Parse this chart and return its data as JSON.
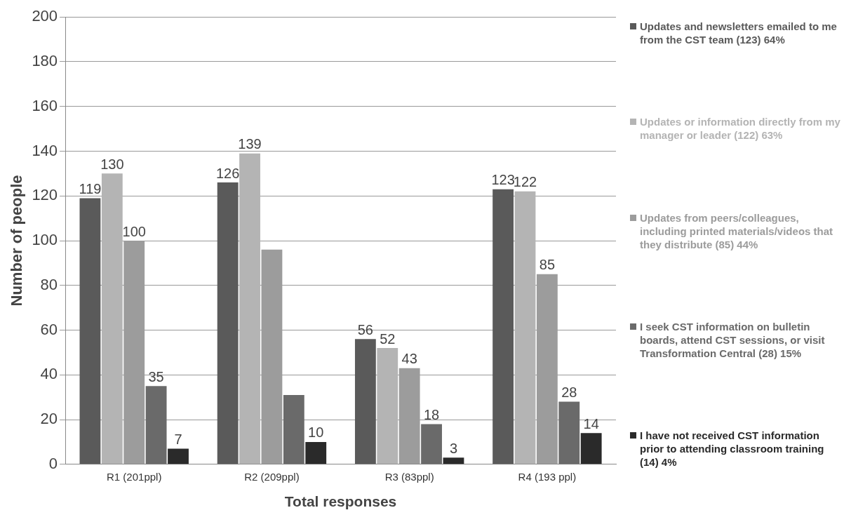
{
  "chart_data": {
    "type": "bar",
    "xlabel": "Total responses",
    "ylabel": "Number of people",
    "categories": [
      "R1 (201ppl)",
      "R2 (209ppl)",
      "R3 (83ppl)",
      "R4 (193 ppl)"
    ],
    "ylim": [
      0,
      200
    ],
    "yticks": [
      0,
      20,
      40,
      60,
      80,
      100,
      120,
      140,
      160,
      180,
      200
    ],
    "grid": "y",
    "legend": "right",
    "series": [
      {
        "name": "Updates and newsletters emailed to me from the CST team (123) 64%",
        "color": "#5a5a5a",
        "values": [
          119,
          126,
          56,
          123
        ],
        "value_labels": [
          "119",
          "126",
          "56",
          "123"
        ]
      },
      {
        "name": "Updates or information directly from my manager or leader (122) 63%",
        "color": "#b4b4b4",
        "values": [
          130,
          139,
          52,
          122
        ],
        "value_labels": [
          "130",
          "139",
          "52",
          "122"
        ]
      },
      {
        "name": "Updates from peers/colleagues, including printed materials/videos that they distribute (85)  44%",
        "color": "#9c9c9c",
        "values": [
          100,
          96,
          43,
          85
        ],
        "value_labels": [
          "100",
          null,
          "43",
          "85"
        ]
      },
      {
        "name": "I seek CST information on bulletin boards, attend CST sessions, or visit Transformation Central (28) 15%",
        "color": "#6a6a6a",
        "values": [
          35,
          31,
          18,
          28
        ],
        "value_labels": [
          "35",
          null,
          "18",
          "28"
        ]
      },
      {
        "name": "I have not received CST information prior to attending classroom training (14) 4%",
        "color": "#2a2a2a",
        "values": [
          7,
          10,
          3,
          14
        ],
        "value_labels": [
          "7",
          "10",
          "3",
          "14"
        ]
      }
    ]
  }
}
